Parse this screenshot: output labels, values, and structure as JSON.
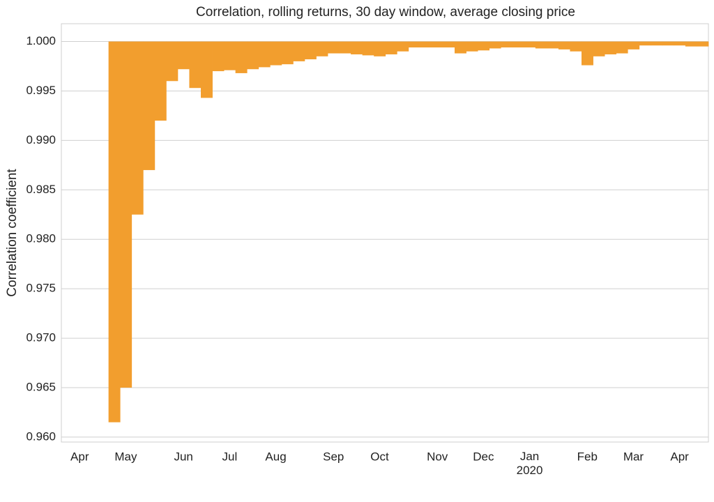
{
  "chart_data": {
    "type": "bar",
    "title": "Correlation, rolling returns, 30 day window, average closing price",
    "ylabel": "Correlation coefficient",
    "color": "#f29e2e",
    "baseline": 1,
    "grid": true,
    "ylim": [
      0.9595,
      1.0018
    ],
    "yticks": [
      {
        "value": 0.96,
        "label": "0.960"
      },
      0.965,
      {
        "value": 0.97,
        "label": "0.970"
      },
      0.975,
      {
        "value": 0.98,
        "label": "0.980"
      },
      0.985,
      {
        "value": 0.99,
        "label": "0.990"
      },
      0.995,
      {
        "value": 1.0,
        "label": "1.000"
      }
    ],
    "categories": [
      "Apr",
      null,
      null,
      null,
      "May",
      null,
      null,
      null,
      null,
      "Jun",
      null,
      null,
      null,
      "Jul",
      null,
      null,
      null,
      "Aug",
      null,
      null,
      null,
      null,
      "Sep",
      null,
      null,
      null,
      "Oct",
      null,
      null,
      null,
      null,
      "Nov",
      null,
      null,
      null,
      "Dec",
      null,
      null,
      null,
      "Jan 2020",
      null,
      null,
      null,
      null,
      "Feb",
      null,
      null,
      null,
      "Mar",
      null,
      null,
      null,
      "Apr",
      null,
      null
    ],
    "values": [
      null,
      null,
      null,
      0.9615,
      0.965,
      0.9825,
      0.987,
      0.992,
      0.996,
      0.9972,
      0.9953,
      0.9943,
      0.997,
      0.9971,
      0.9968,
      0.9972,
      0.9974,
      0.9976,
      0.9977,
      0.998,
      0.9982,
      0.9985,
      0.9988,
      0.9988,
      0.9987,
      0.9986,
      0.9985,
      0.9987,
      0.999,
      0.9994,
      0.9994,
      0.9994,
      0.9994,
      0.9988,
      0.999,
      0.9991,
      0.9993,
      0.9994,
      0.9994,
      0.9994,
      0.9993,
      0.9993,
      0.9992,
      0.999,
      0.9976,
      0.9985,
      0.9987,
      0.9988,
      0.9992,
      0.9996,
      0.9996,
      0.9996,
      0.9996,
      0.9995,
      0.9995
    ]
  }
}
